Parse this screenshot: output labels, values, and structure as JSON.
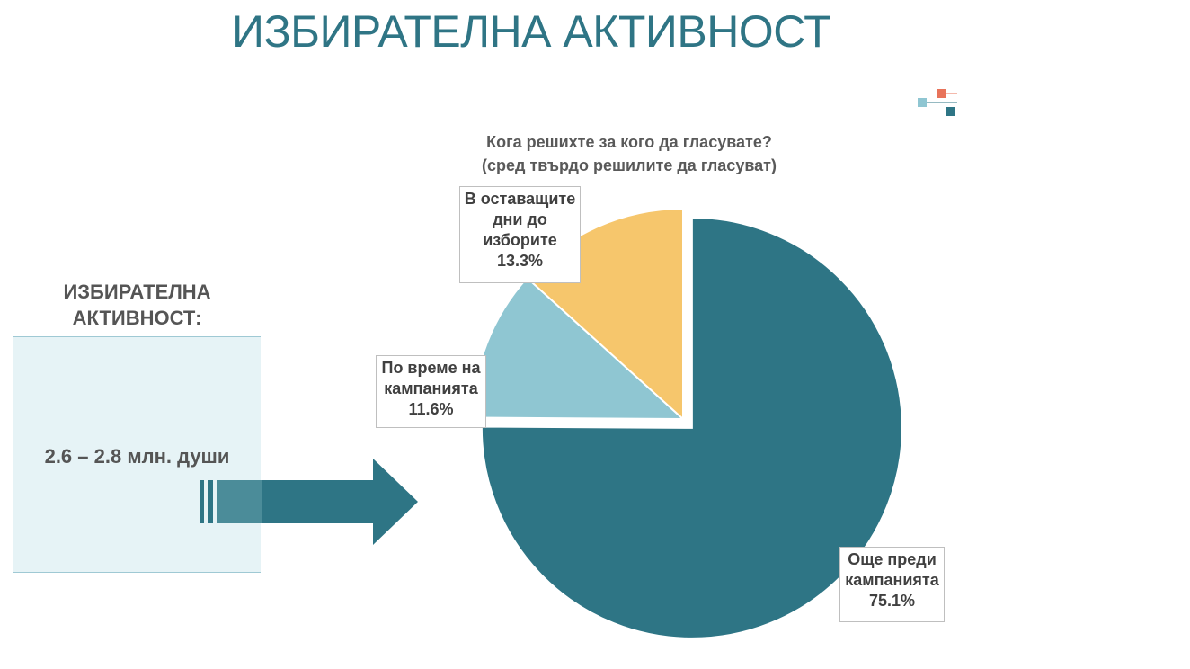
{
  "page": {
    "title": "ИЗБИРАТЕЛНА АКТИВНОСТ"
  },
  "left_panel": {
    "header_line1": "ИЗБИРАТЕЛНА",
    "header_line2": "АКТИВНОСТ:",
    "value": "2.6 – 2.8 млн. души"
  },
  "chart_data": {
    "type": "pie",
    "title_line1": "Кога решихте за кого да гласувате?",
    "title_line2": "(сред твърдо решилите да гласуват)",
    "slices": [
      {
        "label_lines": [
          "Още преди",
          "кампанията"
        ],
        "value": 75.1,
        "display": "75.1%",
        "color": "#2e7585",
        "exploded": true
      },
      {
        "label_lines": [
          "По време на",
          "кампанията"
        ],
        "value": 11.6,
        "display": "11.6%",
        "color": "#8fc6d2",
        "exploded": false
      },
      {
        "label_lines": [
          "В оставащите",
          "дни до",
          "изборите"
        ],
        "value": 13.3,
        "display": "13.3%",
        "color": "#f6c66c",
        "exploded": false
      }
    ]
  },
  "colors": {
    "accent": "#2e7585",
    "panel_bg": "#e6f3f6",
    "light_blue": "#8fc6d2",
    "yellow": "#f6c66c",
    "orange": "#e8735a"
  }
}
